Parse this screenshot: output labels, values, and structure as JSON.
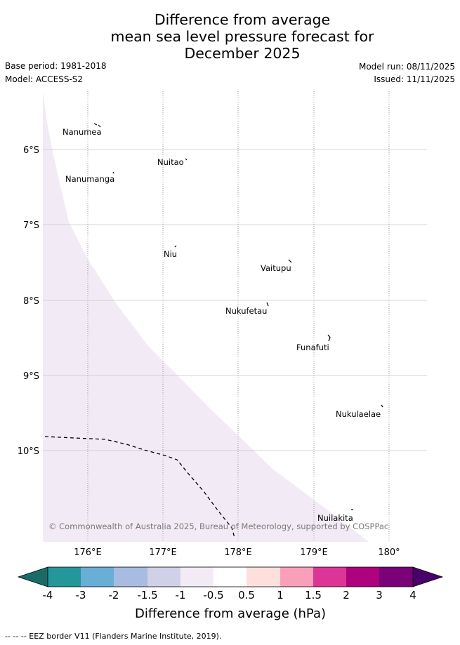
{
  "title": {
    "line1": "Difference from average",
    "line2": "mean sea level pressure forecast for",
    "line3": "December 2025"
  },
  "meta": {
    "base_period": "Base period: 1981-2018",
    "model": "Model: ACCESS-S2",
    "model_run": "Model run: 08/11/2025",
    "issued": "Issued: 11/11/2025"
  },
  "map": {
    "lat_labels": [
      "6°S",
      "7°S",
      "8°S",
      "9°S",
      "10°S"
    ],
    "lon_labels": [
      "176°E",
      "177°E",
      "178°E",
      "179°E",
      "180°"
    ],
    "islands": [
      "Nanumea",
      "Nuitao",
      "Nanumanga",
      "Niu",
      "Vaitupu",
      "Nukufetau",
      "Funafuti",
      "Nukulaelae",
      "Nuilakita"
    ],
    "copyright": "© Commonwealth of Australia 2025, Bureau of Meteorology, supported by COSPPac",
    "shading_category": "-1 to -0.5"
  },
  "colorbar": {
    "labels": [
      "-4",
      "-3",
      "-2",
      "-1.5",
      "-1",
      "-0.5",
      "0.5",
      "1",
      "1.5",
      "2",
      "3",
      "4"
    ],
    "colors": [
      "#1a6b68",
      "#23979a",
      "#69aed7",
      "#a7bce0",
      "#d0d1e6",
      "#f2ebf5",
      "#ffffff",
      "#fde0dd",
      "#f99fba",
      "#dd3497",
      "#ae017e",
      "#7a0177",
      "#49006a"
    ],
    "label": "Difference from average (hPa)"
  },
  "footer": "--  --  -- EEZ border V11 (Flanders Marine Institute, 2019)."
}
